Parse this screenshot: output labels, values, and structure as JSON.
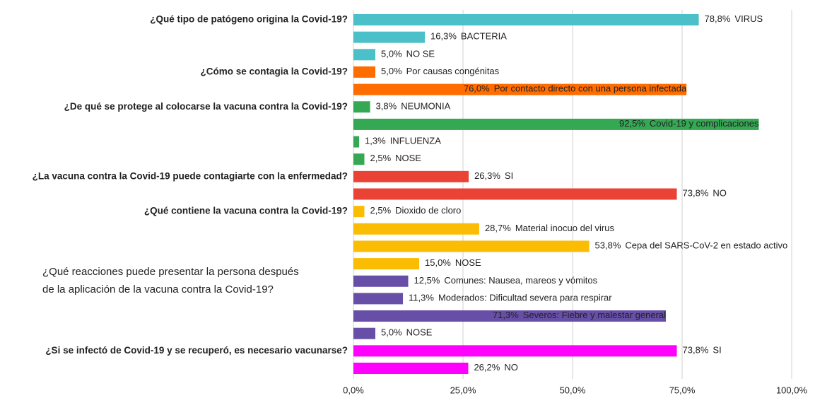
{
  "chart_data": {
    "type": "bar",
    "orientation": "horizontal",
    "xlim": [
      0,
      100
    ],
    "xticks": [
      {
        "value": 0,
        "label": "0,0%"
      },
      {
        "value": 25,
        "label": "25,0%"
      },
      {
        "value": 50,
        "label": "50,0%"
      },
      {
        "value": 75,
        "label": "75,0%"
      },
      {
        "value": 100,
        "label": "100,0%"
      }
    ],
    "grid": true,
    "groups": [
      {
        "question": [
          "¿Qué tipo de patógeno origina la Covid-19?"
        ],
        "color": "#4bc0c8",
        "categories": [
          "VIRUS",
          "BACTERIA",
          "NO SE"
        ],
        "values": [
          78.8,
          16.3,
          5.0
        ],
        "value_labels": [
          "78,8%",
          "16,3%",
          "5,0%"
        ]
      },
      {
        "question": [
          "¿Cómo se contagia la Covid-19?"
        ],
        "color": "#ff6d01",
        "categories": [
          "Por causas congénitas",
          "Por contacto directo con una persona infectada"
        ],
        "values": [
          5.0,
          76.0
        ],
        "value_labels": [
          "5,0%",
          "76,0%"
        ]
      },
      {
        "question": [
          "¿De qué se protege al colocarse la vacuna contra la Covid-19?"
        ],
        "color": "#34a853",
        "categories": [
          "NEUMONIA",
          "Covid-19 y complicaciones",
          "INFLUENZA",
          "NOSE"
        ],
        "values": [
          3.8,
          92.5,
          1.3,
          2.5
        ],
        "value_labels": [
          "3,8%",
          "92,5%",
          "1,3%",
          "2,5%"
        ]
      },
      {
        "question": [
          "¿La vacuna contra la Covid-19 puede contagiarte con la enfermedad?"
        ],
        "color": "#ea4335",
        "categories": [
          "SI",
          "NO"
        ],
        "values": [
          26.3,
          73.8
        ],
        "value_labels": [
          "26,3%",
          "73,8%"
        ]
      },
      {
        "question": [
          "¿Qué contiene la vacuna contra la Covid-19?"
        ],
        "color": "#fbbc04",
        "categories": [
          "Dioxido de cloro",
          "Material inocuo del virus",
          "Cepa del SARS-CoV-2 en estado activo",
          "NOSE"
        ],
        "values": [
          2.5,
          28.7,
          53.8,
          15.0
        ],
        "value_labels": [
          "2,5%",
          "28,7%",
          "53,8%",
          "15,0%"
        ]
      },
      {
        "question": [
          "¿Qué reacciones puede presentar la persona después",
          "de la aplicación de la vacuna contra la Covid-19?"
        ],
        "color": "#674ea7",
        "categories": [
          "Comunes: Nausea, mareos y vómitos",
          "Moderados: Dificultad severa para respirar",
          "Severos: Fiebre y malestar general",
          "NOSE"
        ],
        "values": [
          12.5,
          11.3,
          71.3,
          5.0
        ],
        "value_labels": [
          "12,5%",
          "11,3%",
          "71,3%",
          "5,0%"
        ]
      },
      {
        "question": [
          "¿Si se infectó de Covid-19 y se recuperó, es necesario vacunarse?"
        ],
        "color": "#ff00ff",
        "categories": [
          "SI",
          "NO"
        ],
        "values": [
          73.8,
          26.2
        ],
        "value_labels": [
          "73,8%",
          "26,2%"
        ]
      }
    ]
  }
}
